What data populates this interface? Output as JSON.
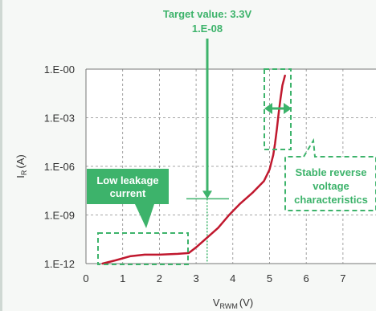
{
  "chart_data": {
    "type": "line",
    "xlabel": "V",
    "xlabel_sub": "RWM",
    "xlabel_unit": "(V)",
    "ylabel": "I",
    "ylabel_sub": "R",
    "ylabel_unit": "(A)",
    "xlim": [
      0,
      7.9
    ],
    "ylim_log": [
      -12,
      0
    ],
    "x_ticks": [
      "0",
      "1",
      "2",
      "3",
      "4",
      "5",
      "6",
      "7"
    ],
    "y_ticks": [
      "1.E-00",
      "1.E-03",
      "1.E-06",
      "1.E-09",
      "1.E-12"
    ],
    "grid": true,
    "series": [
      {
        "color": "#c0182e",
        "points": [
          [
            0.45,
            -12.0
          ],
          [
            0.8,
            -11.8
          ],
          [
            1.2,
            -11.55
          ],
          [
            1.6,
            -11.45
          ],
          [
            2.0,
            -11.45
          ],
          [
            2.5,
            -11.4
          ],
          [
            2.8,
            -11.35
          ],
          [
            3.0,
            -11.0
          ],
          [
            3.3,
            -10.4
          ],
          [
            3.6,
            -9.8
          ],
          [
            3.9,
            -9.0
          ],
          [
            4.2,
            -8.3
          ],
          [
            4.55,
            -7.6
          ],
          [
            4.85,
            -6.9
          ],
          [
            5.0,
            -6.2
          ],
          [
            5.1,
            -5.3
          ],
          [
            5.15,
            -4.6
          ],
          [
            5.2,
            -3.7
          ],
          [
            5.25,
            -2.7
          ],
          [
            5.3,
            -1.8
          ],
          [
            5.35,
            -1.0
          ],
          [
            5.42,
            -0.4
          ]
        ]
      }
    ],
    "annotations": {
      "target_title": "Target value: 3.3V",
      "target_value": "1.E-08",
      "target_x": 3.3,
      "target_log_y": -8,
      "low_leakage_line1": "Low leakage",
      "low_leakage_line2": "current",
      "stable_line1": "Stable reverse",
      "stable_line2": "voltage",
      "stable_line3": "characteristics"
    },
    "accent_color": "#3db36b",
    "grid_color": "#8a8a8a"
  }
}
